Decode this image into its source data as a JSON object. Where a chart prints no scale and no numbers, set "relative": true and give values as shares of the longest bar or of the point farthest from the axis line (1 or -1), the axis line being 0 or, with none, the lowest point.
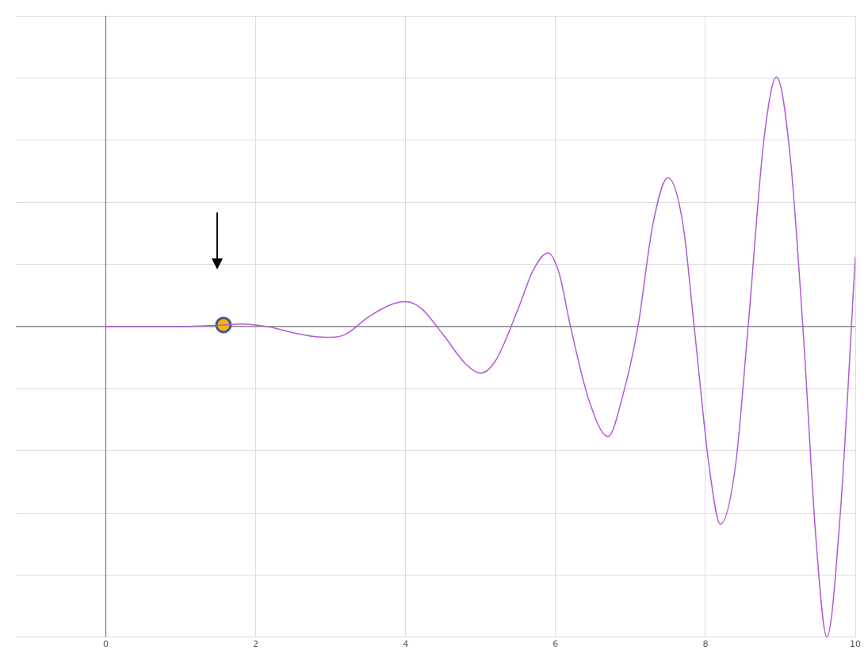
{
  "chart_data": {
    "type": "line",
    "relative": true,
    "xlim": [
      -1.2,
      10
    ],
    "xticks": [
      0,
      2,
      4,
      6,
      8,
      10
    ],
    "grid": true,
    "legend": false,
    "marker": "none",
    "line_style": "solid",
    "series": [
      {
        "color": "#b25ad6",
        "x": [
          0,
          0.5,
          1,
          1.3,
          1.57,
          1.8,
          2,
          2.2,
          2.5,
          2.8,
          3,
          3.2,
          3.5,
          3.8,
          4,
          4.2,
          4.5,
          4.8,
          5,
          5.2,
          5.5,
          5.7,
          5.9,
          6.05,
          6.2,
          6.45,
          6.7,
          6.9,
          7.1,
          7.3,
          7.5,
          7.7,
          7.85,
          8.05,
          8.2,
          8.4,
          8.57,
          8.78,
          8.95,
          9.13,
          9.3,
          9.48,
          9.62,
          9.8,
          10
        ],
        "values": [
          0,
          0,
          0,
          0.002,
          0.005,
          0.008,
          0.005,
          -0.002,
          -0.02,
          -0.033,
          -0.035,
          -0.025,
          0.03,
          0.07,
          0.08,
          0.06,
          -0.026,
          -0.12,
          -0.15,
          -0.11,
          0.056,
          0.18,
          0.237,
          0.17,
          0,
          -0.24,
          -0.354,
          -0.22,
          0,
          0.33,
          0.479,
          0.33,
          0,
          -0.45,
          -0.636,
          -0.45,
          0,
          0.6,
          0.803,
          0.55,
          0,
          -0.7,
          -1,
          -0.6,
          0.225
        ]
      },
      {
        "type": "scatter",
        "color": "#f5b400",
        "x": [
          1.57
        ],
        "values": [
          0.005
        ],
        "marker": "circle"
      }
    ]
  }
}
